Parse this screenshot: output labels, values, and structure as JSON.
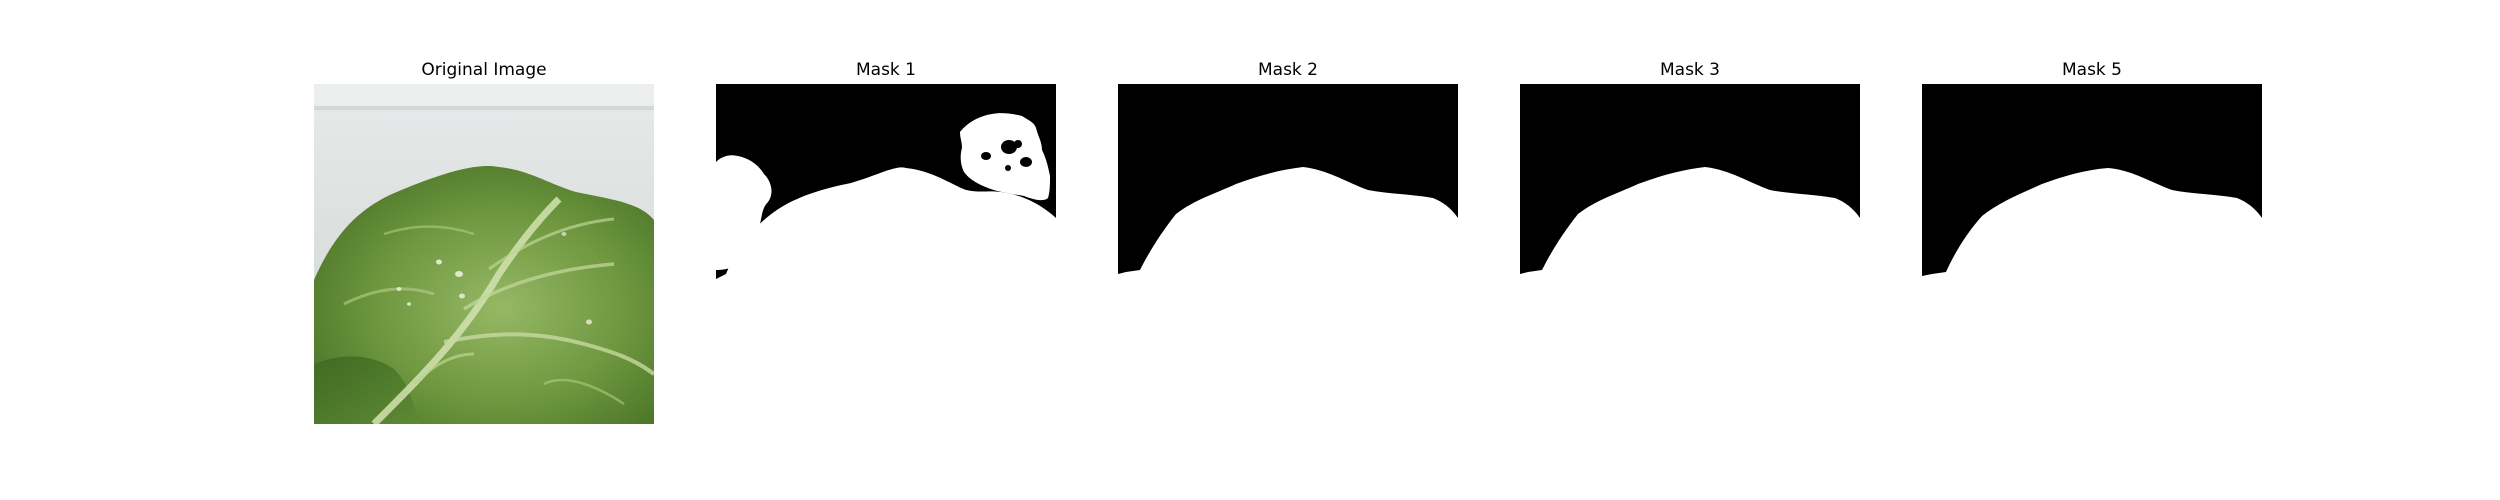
{
  "figure": {
    "panels": [
      {
        "title": "Original Image",
        "kind": "photo",
        "subject": "leaf"
      },
      {
        "title": "Mask 1",
        "kind": "mask"
      },
      {
        "title": "Mask 2",
        "kind": "mask"
      },
      {
        "title": "Mask 3",
        "kind": "mask"
      },
      {
        "title": "Mask 5",
        "kind": "mask"
      }
    ],
    "colors": {
      "background": "#ffffff",
      "mask_foreground": "#ffffff",
      "mask_background": "#000000",
      "leaf_dark": "#4f7a2c",
      "leaf_light": "#8fb35a",
      "backdrop": "#dfe3e4"
    }
  }
}
